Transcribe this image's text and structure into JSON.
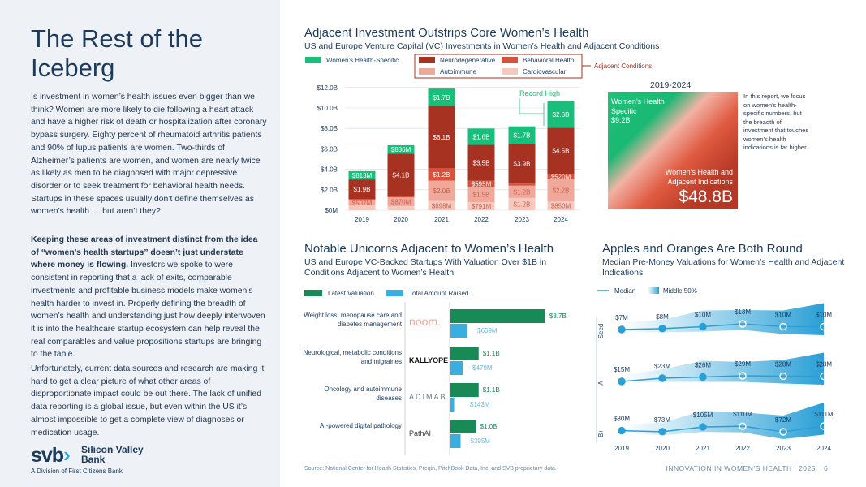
{
  "left": {
    "title": "The Rest of the Iceberg",
    "para1": "Is investment in women’s health issues even bigger than we think? Women are more likely to die following a heart attack and have a higher risk of death or hospitalization after coronary bypass surgery. Eighty percent of rheumatoid arthritis patients and 90% of lupus patients are women. Two-thirds of Alzheimer’s patients are women, and women are nearly twice as likely as men to be diagnosed with major depressive disorder or to seek treatment for behavioral health needs. Startups in these spaces usually don’t define themselves as women’s health … but aren’t they?",
    "para2_bold": "Keeping these areas of investment distinct from the idea of “women’s health startups” doesn’t just understate where money is flowing.",
    "para2_rest": " Investors we spoke to were consistent in reporting that a lack of exits, comparable investments and profitable business models make women’s health harder to invest in. Properly defining the breadth of women’s health and understanding just how deeply interwoven it is into the healthcare startup ecosystem can help reveal the real comparables and value propositions startups are bringing to the table.",
    "para3": "Unfortunately, current data sources and research are making it hard to get a clear picture of what other areas of disproportionate impact could be out there. The lack of unified data reporting is a global issue, but even within the US it’s almost impossible to get a complete view of diagnoses or medication usage.",
    "logo": {
      "svb": "svb",
      "name": "Silicon Valley Bank",
      "division": "A Division of First Citizens Bank"
    }
  },
  "chart_data": [
    {
      "type": "bar",
      "title": "Adjacent Investment Outstrips Core Women’s Health",
      "subtitle": "US and Europe Venture Capital (VC) Investments in Women’s Health and Adjacent Conditions",
      "categories": [
        "2019",
        "2020",
        "2021",
        "2022",
        "2023",
        "2024"
      ],
      "ylim": [
        0,
        12
      ],
      "yticks": [
        "$0M",
        "$2.0B",
        "$4.0B",
        "$6.0B",
        "$8.0B",
        "$10.0B",
        "$12.0B"
      ],
      "grid": true,
      "legend_bracket": "Adjacent Conditions",
      "annotation": "Record High",
      "series": [
        {
          "name": "Cardiovascular",
          "color": "#f6c9bf",
          "values": [
            0.45,
            0.4,
            0.898,
            0.791,
            1.2,
            0.85
          ],
          "labels": [
            "",
            "",
            "$898M",
            "$791M",
            "$1.2B",
            "$850M"
          ]
        },
        {
          "name": "Autoimmune",
          "color": "#f0a89a",
          "values": [
            0.507,
            0.87,
            2.0,
            1.5,
            1.2,
            2.2
          ],
          "labels": [
            "$507M",
            "$870M",
            "$2.0B",
            "$1.5B",
            "$1.2B",
            "$2.2B"
          ]
        },
        {
          "name": "Behavioral Health",
          "color": "#d9513a",
          "values": [
            0.15,
            0.15,
            1.2,
            0.595,
            0.2,
            0.52
          ],
          "labels": [
            "",
            "",
            "$1.2B",
            "$595M",
            "",
            "$520M"
          ]
        },
        {
          "name": "Neurodegenerative",
          "color": "#a83222",
          "values": [
            1.9,
            4.1,
            6.1,
            3.5,
            3.9,
            4.5
          ],
          "labels": [
            "$1.9B",
            "$4.1B",
            "$6.1B",
            "$3.5B",
            "$3.9B",
            "$4.5B"
          ]
        },
        {
          "name": "Women’s Health-Specific",
          "color": "#17bf7a",
          "values": [
            0.813,
            0.836,
            1.7,
            1.6,
            1.7,
            2.6
          ],
          "labels": [
            "$813M",
            "$836M",
            "$1.7B",
            "$1.6B",
            "$1.7B",
            "$2.6B"
          ]
        }
      ]
    },
    {
      "type": "bar",
      "orientation": "horizontal",
      "title": "Notable Unicorns Adjacent to Women’s Health",
      "subtitle": "US and Europe VC-Backed Startups With Valuation Over $1B in Conditions Adjacent to Women’s Health",
      "categories": [
        "Weight loss, menopause care and diabetes management",
        "Neurological, metabolic conditions and migraines",
        "Oncology and autoimmune diseases",
        "AI-powered digital pathology"
      ],
      "companies": [
        "noom.",
        "KALLYOPE",
        "ADIMAB",
        "PathAI"
      ],
      "series": [
        {
          "name": "Latest Valuation",
          "color": "#178a55",
          "values": [
            3.7,
            1.1,
            1.1,
            1.0
          ],
          "labels": [
            "$3.7B",
            "$1.1B",
            "$1.1B",
            "$1.0B"
          ]
        },
        {
          "name": "Total Amount Raised",
          "color": "#3aaee0",
          "values": [
            0.669,
            0.479,
            0.143,
            0.395
          ],
          "labels": [
            "$669M",
            "$479M",
            "$143M",
            "$395M"
          ]
        }
      ]
    },
    {
      "type": "line",
      "title": "Apples and Oranges Are Both Round",
      "subtitle": "Median Pre-Money Valuations for Women’s Health and Adjacent Indications",
      "x": [
        "2019",
        "2020",
        "2021",
        "2022",
        "2023",
        "2024"
      ],
      "legend": [
        "Median",
        "Middle 50%"
      ],
      "series": [
        {
          "name": "Seed",
          "values": [
            7,
            8,
            10,
            13,
            10,
            10
          ],
          "labels": [
            "$7M",
            "$8M",
            "$10M",
            "$13M",
            "$10M",
            "$10M"
          ]
        },
        {
          "name": "A",
          "values": [
            15,
            23,
            26,
            29,
            28,
            28
          ],
          "labels": [
            "$15M",
            "$23M",
            "$26M",
            "$29M",
            "$28M",
            "$28M"
          ]
        },
        {
          "name": "B+",
          "values": [
            80,
            73,
            105,
            110,
            72,
            111
          ],
          "labels": [
            "$80M",
            "$73M",
            "$105M",
            "$110M",
            "$72M",
            "$111M"
          ]
        }
      ]
    }
  ],
  "callout": {
    "period": "2019-2024",
    "specific_label": "Women’s Health Specific",
    "specific_value": "$9.2B",
    "total_label": "Women’s Health and Adjacent Indications",
    "total_value": "$48.8B",
    "note": "In this report, we focus on women’s health-specific numbers, but the breadth of investment that touches women’s health indications is far higher."
  },
  "footer": {
    "source": "Source: National Center for Health Statistics, Preqin, PitchBook Data, Inc. and SVB proprietary data.",
    "report": "INNOVATION IN WOMEN’S HEALTH | 2025",
    "page": "6"
  }
}
